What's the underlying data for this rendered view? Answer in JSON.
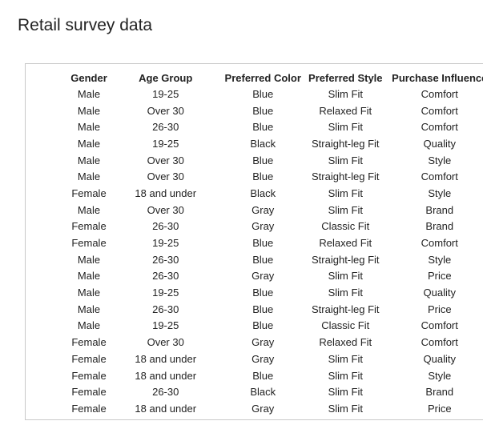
{
  "title": "Retail survey data",
  "table": {
    "headers": [
      "Gender",
      "Age Group",
      "Preferred Color",
      "Preferred Style",
      "Purchase Influence"
    ],
    "rows": [
      [
        "Male",
        "19-25",
        "Blue",
        "Slim Fit",
        "Comfort"
      ],
      [
        "Male",
        "Over 30",
        "Blue",
        "Relaxed Fit",
        "Comfort"
      ],
      [
        "Male",
        "26-30",
        "Blue",
        "Slim Fit",
        "Comfort"
      ],
      [
        "Male",
        "19-25",
        "Black",
        "Straight-leg Fit",
        "Quality"
      ],
      [
        "Male",
        "Over 30",
        "Blue",
        "Slim Fit",
        "Style"
      ],
      [
        "Male",
        "Over 30",
        "Blue",
        "Straight-leg Fit",
        "Comfort"
      ],
      [
        "Female",
        "18 and under",
        "Black",
        "Slim Fit",
        "Style"
      ],
      [
        "Male",
        "Over 30",
        "Gray",
        "Slim Fit",
        "Brand"
      ],
      [
        "Female",
        "26-30",
        "Gray",
        "Classic Fit",
        "Brand"
      ],
      [
        "Female",
        "19-25",
        "Blue",
        "Relaxed Fit",
        "Comfort"
      ],
      [
        "Male",
        "26-30",
        "Blue",
        "Straight-leg Fit",
        "Style"
      ],
      [
        "Male",
        "26-30",
        "Gray",
        "Slim Fit",
        "Price"
      ],
      [
        "Male",
        "19-25",
        "Blue",
        "Slim Fit",
        "Quality"
      ],
      [
        "Male",
        "26-30",
        "Blue",
        "Straight-leg Fit",
        "Price"
      ],
      [
        "Male",
        "19-25",
        "Blue",
        "Classic Fit",
        "Comfort"
      ],
      [
        "Female",
        "Over 30",
        "Gray",
        "Relaxed Fit",
        "Comfort"
      ],
      [
        "Female",
        "18 and under",
        "Gray",
        "Slim Fit",
        "Quality"
      ],
      [
        "Female",
        "18 and under",
        "Blue",
        "Slim Fit",
        "Style"
      ],
      [
        "Female",
        "26-30",
        "Black",
        "Slim Fit",
        "Brand"
      ],
      [
        "Female",
        "18 and under",
        "Gray",
        "Slim Fit",
        "Price"
      ]
    ]
  }
}
